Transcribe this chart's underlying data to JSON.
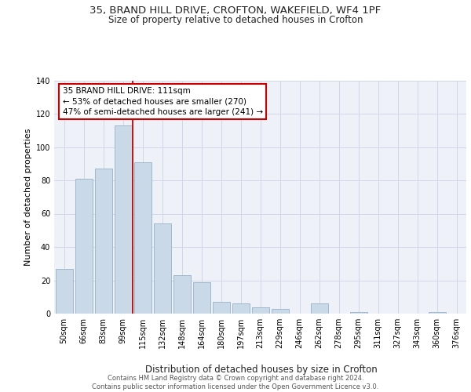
{
  "title1": "35, BRAND HILL DRIVE, CROFTON, WAKEFIELD, WF4 1PF",
  "title2": "Size of property relative to detached houses in Crofton",
  "xlabel": "Distribution of detached houses by size in Crofton",
  "ylabel": "Number of detached properties",
  "categories": [
    "50sqm",
    "66sqm",
    "83sqm",
    "99sqm",
    "115sqm",
    "132sqm",
    "148sqm",
    "164sqm",
    "180sqm",
    "197sqm",
    "213sqm",
    "229sqm",
    "246sqm",
    "262sqm",
    "278sqm",
    "295sqm",
    "311sqm",
    "327sqm",
    "343sqm",
    "360sqm",
    "376sqm"
  ],
  "values": [
    27,
    81,
    87,
    113,
    91,
    54,
    23,
    19,
    7,
    6,
    4,
    3,
    0,
    6,
    0,
    1,
    0,
    0,
    0,
    1,
    0
  ],
  "bar_color": "#c9d9e8",
  "bar_edge_color": "#a0b8cc",
  "vline_color": "#cc0000",
  "annotation_text": "35 BRAND HILL DRIVE: 111sqm\n← 53% of detached houses are smaller (270)\n47% of semi-detached houses are larger (241) →",
  "annotation_box_color": "#cc0000",
  "ylim": [
    0,
    140
  ],
  "yticks": [
    0,
    20,
    40,
    60,
    80,
    100,
    120,
    140
  ],
  "grid_color": "#d0d8e8",
  "bg_color": "#eef2f8",
  "footer": "Contains HM Land Registry data © Crown copyright and database right 2024.\nContains public sector information licensed under the Open Government Licence v3.0.",
  "title1_fontsize": 9.5,
  "title2_fontsize": 8.5,
  "xlabel_fontsize": 8.5,
  "ylabel_fontsize": 8,
  "tick_fontsize": 7,
  "footer_fontsize": 6,
  "ann_fontsize": 7.5
}
